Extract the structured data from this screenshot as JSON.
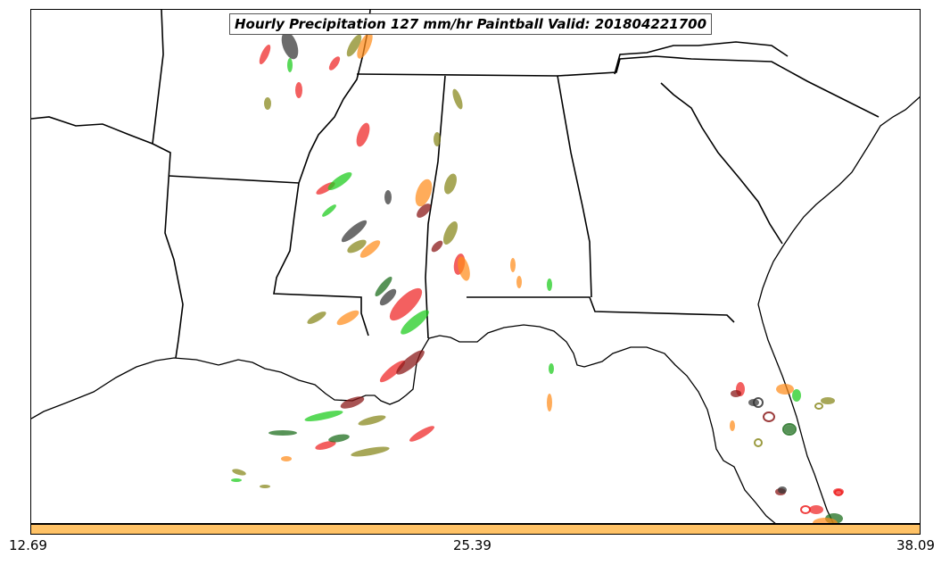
{
  "title": "Hourly Precipitation 127 mm/hr Paintball Valid: 201804221700",
  "colorbar": {
    "color": "#ffc266",
    "ticks": [
      "12.69",
      "25.39",
      "38.09"
    ]
  },
  "colors": {
    "member_red": "#ee2222",
    "member_darkred": "#8b1a1a",
    "member_green": "#22cc22",
    "member_darkgreen": "#1f6f1f",
    "member_olive": "#8a8a20",
    "member_orange": "#ff8c1a",
    "member_gray": "#333333",
    "outline": "#000000"
  }
}
